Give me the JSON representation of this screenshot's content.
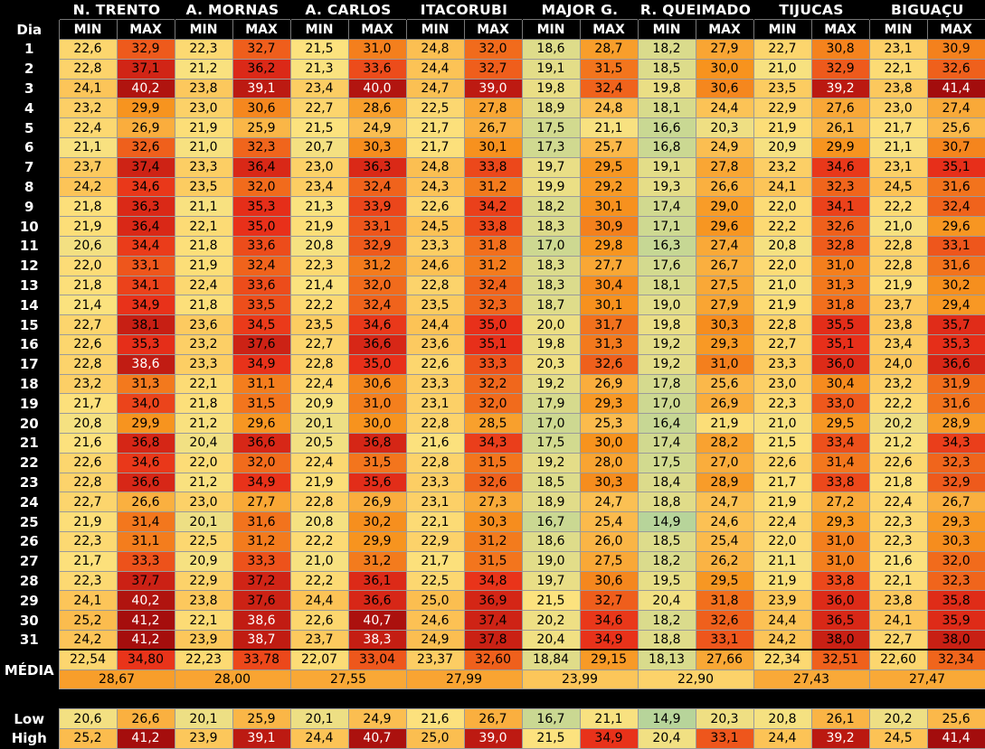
{
  "header": {
    "day_label": "Dia",
    "min_label": "MIN",
    "max_label": "MAX",
    "stations": [
      "N. TRENTO",
      "A. MORNAS",
      "A. CARLOS",
      "ITACORUBI",
      "MAJOR G.",
      "R. QUEIMADO",
      "TIJUCAS",
      "BIGUAÇU"
    ]
  },
  "rows": [
    {
      "day": "1",
      "vals": [
        "22,6",
        "32,9",
        "22,3",
        "32,7",
        "21,5",
        "31,0",
        "24,8",
        "32,0",
        "18,6",
        "28,7",
        "18,2",
        "27,9",
        "22,7",
        "30,8",
        "23,1",
        "30,9"
      ]
    },
    {
      "day": "2",
      "vals": [
        "22,8",
        "37,1",
        "21,2",
        "36,2",
        "21,3",
        "33,6",
        "24,4",
        "32,7",
        "19,1",
        "31,5",
        "18,5",
        "30,0",
        "21,0",
        "32,9",
        "22,1",
        "32,6"
      ]
    },
    {
      "day": "3",
      "vals": [
        "24,1",
        "40,2",
        "23,8",
        "39,1",
        "23,4",
        "40,0",
        "24,7",
        "39,0",
        "19,8",
        "32,4",
        "19,8",
        "30,6",
        "23,5",
        "39,2",
        "23,8",
        "41,4"
      ]
    },
    {
      "day": "4",
      "vals": [
        "23,2",
        "29,9",
        "23,0",
        "30,6",
        "22,7",
        "28,6",
        "22,5",
        "27,8",
        "18,9",
        "24,8",
        "18,1",
        "24,4",
        "22,9",
        "27,6",
        "23,0",
        "27,4"
      ]
    },
    {
      "day": "5",
      "vals": [
        "22,4",
        "26,9",
        "21,9",
        "25,9",
        "21,5",
        "24,9",
        "21,7",
        "26,7",
        "17,5",
        "21,1",
        "16,6",
        "20,3",
        "21,9",
        "26,1",
        "21,7",
        "25,6"
      ]
    },
    {
      "day": "6",
      "vals": [
        "21,1",
        "32,6",
        "21,0",
        "32,3",
        "20,7",
        "30,3",
        "21,7",
        "30,1",
        "17,3",
        "25,7",
        "16,8",
        "24,9",
        "20,9",
        "29,9",
        "21,1",
        "30,7"
      ]
    },
    {
      "day": "7",
      "vals": [
        "23,7",
        "37,4",
        "23,3",
        "36,4",
        "23,0",
        "36,3",
        "24,8",
        "33,8",
        "19,7",
        "29,5",
        "19,1",
        "27,8",
        "23,2",
        "34,6",
        "23,1",
        "35,1"
      ]
    },
    {
      "day": "8",
      "vals": [
        "24,2",
        "34,6",
        "23,5",
        "32,0",
        "23,4",
        "32,4",
        "24,3",
        "31,2",
        "19,9",
        "29,2",
        "19,3",
        "26,6",
        "24,1",
        "32,3",
        "24,5",
        "31,6"
      ]
    },
    {
      "day": "9",
      "vals": [
        "21,8",
        "36,3",
        "21,1",
        "35,3",
        "21,3",
        "33,9",
        "22,6",
        "34,2",
        "18,2",
        "30,1",
        "17,4",
        "29,0",
        "22,0",
        "34,1",
        "22,2",
        "32,4"
      ]
    },
    {
      "day": "10",
      "vals": [
        "21,9",
        "36,4",
        "22,1",
        "35,0",
        "21,9",
        "33,1",
        "24,5",
        "33,8",
        "18,3",
        "30,9",
        "17,1",
        "29,6",
        "22,2",
        "32,6",
        "21,0",
        "29,6"
      ]
    },
    {
      "day": "11",
      "vals": [
        "20,6",
        "34,4",
        "21,8",
        "33,6",
        "20,8",
        "32,9",
        "23,3",
        "31,8",
        "17,0",
        "29,8",
        "16,3",
        "27,4",
        "20,8",
        "32,8",
        "22,8",
        "33,1"
      ]
    },
    {
      "day": "12",
      "vals": [
        "22,0",
        "33,1",
        "21,9",
        "32,4",
        "22,3",
        "31,2",
        "24,6",
        "31,2",
        "18,3",
        "27,7",
        "17,6",
        "26,7",
        "22,0",
        "31,0",
        "22,8",
        "31,6"
      ]
    },
    {
      "day": "13",
      "vals": [
        "21,8",
        "34,1",
        "22,4",
        "33,6",
        "21,4",
        "32,0",
        "22,8",
        "32,4",
        "18,3",
        "30,4",
        "18,1",
        "27,5",
        "21,0",
        "31,3",
        "21,9",
        "30,2"
      ]
    },
    {
      "day": "14",
      "vals": [
        "21,4",
        "34,9",
        "21,8",
        "33,5",
        "22,2",
        "32,4",
        "23,5",
        "32,3",
        "18,7",
        "30,1",
        "19,0",
        "27,9",
        "21,9",
        "31,8",
        "23,7",
        "29,4"
      ]
    },
    {
      "day": "15",
      "vals": [
        "22,7",
        "38,1",
        "23,6",
        "34,5",
        "23,5",
        "34,6",
        "24,4",
        "35,0",
        "20,0",
        "31,7",
        "19,8",
        "30,3",
        "22,8",
        "35,5",
        "23,8",
        "35,7"
      ]
    },
    {
      "day": "16",
      "vals": [
        "22,6",
        "35,3",
        "23,2",
        "37,6",
        "22,7",
        "36,6",
        "23,6",
        "35,1",
        "19,8",
        "31,3",
        "19,2",
        "29,3",
        "22,7",
        "35,1",
        "23,4",
        "35,3"
      ]
    },
    {
      "day": "17",
      "vals": [
        "22,8",
        "38,6",
        "23,3",
        "34,9",
        "22,8",
        "35,0",
        "22,6",
        "33,3",
        "20,3",
        "32,6",
        "19,2",
        "31,0",
        "23,3",
        "36,0",
        "24,0",
        "36,6"
      ]
    },
    {
      "day": "18",
      "vals": [
        "23,2",
        "31,3",
        "22,1",
        "31,1",
        "22,4",
        "30,6",
        "23,3",
        "32,2",
        "19,2",
        "26,9",
        "17,8",
        "25,6",
        "23,0",
        "30,4",
        "23,2",
        "31,9"
      ]
    },
    {
      "day": "19",
      "vals": [
        "21,7",
        "34,0",
        "21,8",
        "31,5",
        "20,9",
        "31,0",
        "23,1",
        "32,0",
        "17,9",
        "29,3",
        "17,0",
        "26,9",
        "22,3",
        "33,0",
        "22,2",
        "31,6"
      ]
    },
    {
      "day": "20",
      "vals": [
        "20,8",
        "29,9",
        "21,2",
        "29,6",
        "20,1",
        "30,0",
        "22,8",
        "28,5",
        "17,0",
        "25,3",
        "16,4",
        "21,9",
        "21,0",
        "29,5",
        "20,2",
        "28,9"
      ]
    },
    {
      "day": "21",
      "vals": [
        "21,6",
        "36,8",
        "20,4",
        "36,6",
        "20,5",
        "36,8",
        "21,6",
        "34,3",
        "17,5",
        "30,0",
        "17,4",
        "28,2",
        "21,5",
        "33,4",
        "21,2",
        "34,3"
      ]
    },
    {
      "day": "22",
      "vals": [
        "22,6",
        "34,6",
        "22,0",
        "32,0",
        "22,4",
        "31,5",
        "22,8",
        "31,5",
        "19,2",
        "28,0",
        "17,5",
        "27,0",
        "22,6",
        "31,4",
        "22,6",
        "32,3"
      ]
    },
    {
      "day": "23",
      "vals": [
        "22,8",
        "36,6",
        "21,2",
        "34,9",
        "21,9",
        "35,6",
        "23,3",
        "32,6",
        "18,5",
        "30,3",
        "18,4",
        "28,9",
        "21,7",
        "33,8",
        "21,8",
        "32,9"
      ]
    },
    {
      "day": "24",
      "vals": [
        "22,7",
        "26,6",
        "23,0",
        "27,7",
        "22,8",
        "26,9",
        "23,1",
        "27,3",
        "18,9",
        "24,7",
        "18,8",
        "24,7",
        "21,9",
        "27,2",
        "22,4",
        "26,7"
      ]
    },
    {
      "day": "25",
      "vals": [
        "21,9",
        "31,4",
        "20,1",
        "31,6",
        "20,8",
        "30,2",
        "22,1",
        "30,3",
        "16,7",
        "25,4",
        "14,9",
        "24,6",
        "22,4",
        "29,3",
        "22,3",
        "29,3"
      ]
    },
    {
      "day": "26",
      "vals": [
        "22,3",
        "31,1",
        "22,5",
        "31,2",
        "22,2",
        "29,9",
        "22,9",
        "31,2",
        "18,6",
        "26,0",
        "18,5",
        "25,4",
        "22,0",
        "31,0",
        "22,3",
        "30,3"
      ]
    },
    {
      "day": "27",
      "vals": [
        "21,7",
        "33,3",
        "20,9",
        "33,3",
        "21,0",
        "31,2",
        "21,7",
        "31,5",
        "19,0",
        "27,5",
        "18,2",
        "26,2",
        "21,1",
        "31,0",
        "21,6",
        "32,0"
      ]
    },
    {
      "day": "28",
      "vals": [
        "22,3",
        "37,7",
        "22,9",
        "37,2",
        "22,2",
        "36,1",
        "22,5",
        "34,8",
        "19,7",
        "30,6",
        "19,5",
        "29,5",
        "21,9",
        "33,8",
        "22,1",
        "32,3"
      ]
    },
    {
      "day": "29",
      "vals": [
        "24,1",
        "40,2",
        "23,8",
        "37,6",
        "24,4",
        "36,6",
        "25,0",
        "36,9",
        "21,5",
        "32,7",
        "20,4",
        "31,8",
        "23,9",
        "36,0",
        "23,8",
        "35,8"
      ]
    },
    {
      "day": "30",
      "vals": [
        "25,2",
        "41,2",
        "22,1",
        "38,6",
        "22,6",
        "40,7",
        "24,6",
        "37,4",
        "20,2",
        "34,6",
        "18,2",
        "32,6",
        "24,4",
        "36,5",
        "24,1",
        "35,9"
      ]
    },
    {
      "day": "31",
      "vals": [
        "24,2",
        "41,2",
        "23,9",
        "38,7",
        "23,7",
        "38,3",
        "24,9",
        "37,8",
        "20,4",
        "34,9",
        "18,8",
        "33,1",
        "24,2",
        "38,0",
        "22,7",
        "38,0"
      ]
    }
  ],
  "summary": {
    "media_label": "MÉDIA",
    "media_vals": [
      "22,54",
      "34,80",
      "22,23",
      "33,78",
      "22,07",
      "33,04",
      "23,37",
      "32,60",
      "18,84",
      "29,15",
      "18,13",
      "27,66",
      "22,34",
      "32,51",
      "22,60",
      "32,34"
    ],
    "media_avg": [
      "28,67",
      "28,00",
      "27,55",
      "27,99",
      "23,99",
      "22,90",
      "27,43",
      "27,47"
    ],
    "low_label": "Low",
    "low_vals": [
      "20,6",
      "26,6",
      "20,1",
      "25,9",
      "20,1",
      "24,9",
      "21,6",
      "26,7",
      "16,7",
      "21,1",
      "14,9",
      "20,3",
      "20,8",
      "26,1",
      "20,2",
      "25,6"
    ],
    "high_label": "High",
    "high_vals": [
      "25,2",
      "41,2",
      "23,9",
      "39,1",
      "24,4",
      "40,7",
      "25,0",
      "39,0",
      "21,5",
      "34,9",
      "20,4",
      "33,1",
      "24,4",
      "39,2",
      "24,5",
      "41,4"
    ]
  },
  "colors": {
    "scale_low": "#b7d49a",
    "scale_mid": "#fce27e",
    "scale_orange": "#f7931e",
    "scale_red": "#e8301a",
    "scale_darkred": "#a30d0d"
  }
}
